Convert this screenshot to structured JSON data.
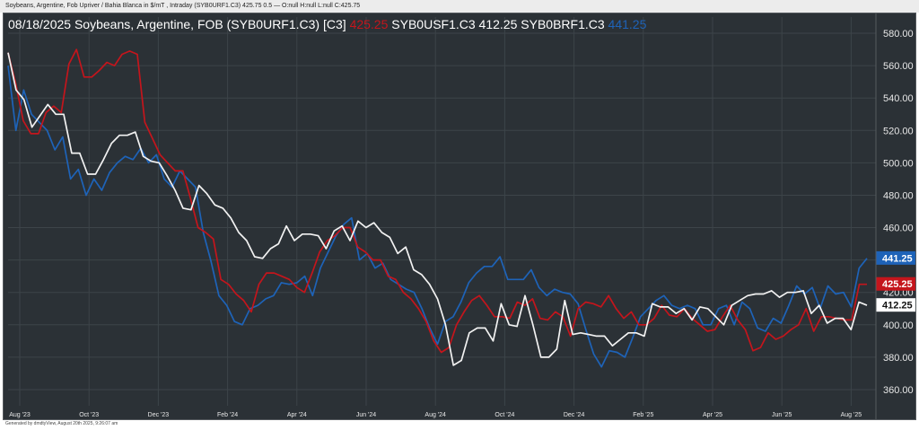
{
  "header_info": "Soybeans, Argentine, Fob Upriver / Bahia Blanca in $/mT , Intraday (SYB0URF1.C3) 425.75 0.5 — O:null H:null L:null C:425.75",
  "footer_text": "Generated by dmdtyView, August 20th 2025, 9:26:07 am",
  "colors": {
    "background": "#2b3136",
    "grid": "#3d4449",
    "red": "#c4151c",
    "white": "#f2f2f2",
    "blue": "#1e63b8",
    "text": "#ffffff",
    "axis_text": "#e8e8e8"
  },
  "chart_data": {
    "type": "line",
    "title_date": "08/18/2025",
    "title_text": "Soybeans, Argentine, FOB (SYB0URF1.C3) [C3]",
    "ylim": [
      350,
      590
    ],
    "y_ticks": [
      360,
      380,
      400,
      420,
      440,
      460,
      480,
      500,
      520,
      540,
      560,
      580
    ],
    "y_tick_labels": [
      "360.00",
      "380.00",
      "400.00",
      "420.00",
      "440.00",
      "460.00",
      "480.00",
      "500.00",
      "520.00",
      "540.00",
      "560.00",
      "580.00"
    ],
    "x_ticks": [
      "Aug '23",
      "Oct '23",
      "Dec '23",
      "Feb '24",
      "Apr '24",
      "Jun '24",
      "Aug '24",
      "Oct '24",
      "Dec '24",
      "Feb '25",
      "Apr '25",
      "Jun '25",
      "Aug '25"
    ],
    "grid": true,
    "series": [
      {
        "name": "SYB0URF1.C3",
        "legend_value": "425.25",
        "last_label": "425.25",
        "color_key": "red",
        "values": [
          568,
          549,
          526,
          518,
          518,
          531,
          535,
          531,
          561,
          570,
          553,
          553,
          557,
          562,
          560,
          567,
          569,
          567,
          525,
          515,
          505,
          500,
          495,
          495,
          478,
          460,
          457,
          453,
          428,
          425,
          419,
          415,
          408,
          425,
          432,
          432,
          430,
          428,
          423,
          420,
          432,
          445,
          452,
          455,
          460,
          460,
          448,
          445,
          440,
          440,
          430,
          428,
          420,
          416,
          410,
          402,
          390,
          383,
          386,
          400,
          408,
          415,
          418,
          412,
          405,
          405,
          404,
          414,
          412,
          416,
          404,
          403,
          408,
          405,
          393,
          410,
          414,
          413,
          411,
          418,
          410,
          404,
          408,
          400,
          400,
          404,
          412,
          406,
          405,
          410,
          404,
          400,
          396,
          397,
          405,
          412,
          403,
          397,
          384,
          386,
          395,
          391,
          393,
          397,
          400,
          410,
          396,
          405,
          405,
          404,
          403,
          403,
          425,
          425
        ],
        "rgb": [
          196,
          21,
          28
        ]
      },
      {
        "name": "SYB0USF1.C3",
        "legend_value": "412.25",
        "last_label": "412.25",
        "color_key": "white",
        "values": [
          568,
          545,
          539,
          522,
          529,
          536,
          530,
          530,
          506,
          506,
          493,
          493,
          502,
          512,
          517,
          517,
          519,
          504,
          501,
          500,
          492,
          483,
          472,
          471,
          486,
          481,
          474,
          472,
          466,
          457,
          452,
          442,
          441,
          447,
          450,
          461,
          452,
          456,
          456,
          455,
          447,
          458,
          461,
          452,
          464,
          460,
          463,
          457,
          454,
          444,
          448,
          434,
          431,
          425,
          416,
          400,
          375,
          378,
          395,
          398,
          398,
          390,
          413,
          400,
          399,
          418,
          400,
          380,
          380,
          385,
          415,
          394,
          395,
          394,
          393,
          393,
          387,
          391,
          395,
          395,
          393,
          413,
          411,
          411,
          407,
          410,
          403,
          411,
          410,
          405,
          400,
          412,
          415,
          418,
          419,
          419,
          421,
          417,
          420,
          420,
          421,
          407,
          412,
          401,
          404,
          404,
          397,
          414,
          412
        ],
        "rgb": [
          242,
          242,
          242
        ]
      },
      {
        "name": "SYB0BRF1.C3",
        "legend_value": "441.25",
        "last_label": "441.25",
        "color_key": "blue",
        "values": [
          560,
          520,
          545,
          530,
          525,
          520,
          508,
          516,
          490,
          496,
          480,
          490,
          483,
          494,
          500,
          504,
          502,
          509,
          500,
          505,
          490,
          485,
          495,
          490,
          485,
          457,
          439,
          418,
          412,
          402,
          400,
          410,
          412,
          416,
          418,
          426,
          425,
          426,
          430,
          418,
          435,
          445,
          455,
          462,
          466,
          440,
          444,
          435,
          438,
          428,
          425,
          422,
          420,
          410,
          398,
          388,
          402,
          405,
          414,
          426,
          432,
          436,
          436,
          442,
          428,
          428,
          428,
          434,
          423,
          418,
          422,
          420,
          419,
          413,
          397,
          382,
          374,
          384,
          383,
          380,
          392,
          405,
          410,
          415,
          418,
          412,
          410,
          412,
          410,
          400,
          400,
          410,
          412,
          400,
          414,
          410,
          398,
          396,
          404,
          401,
          412,
          424,
          419,
          423,
          410,
          424,
          419,
          420,
          411,
          435,
          441
        ],
        "rgb": [
          30,
          99,
          184
        ]
      }
    ]
  }
}
